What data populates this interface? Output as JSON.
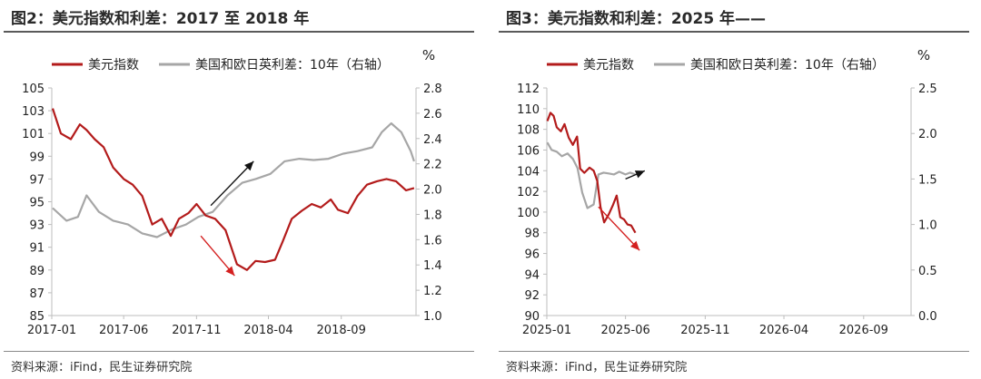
{
  "charts": [
    {
      "panel_title": "图2：美元指数和利差：2017 至 2018 年",
      "source": "资料来源：iFind，民生证券研究院",
      "right_unit": "%",
      "legend": [
        {
          "label": "美元指数",
          "color": "#b31b1b"
        },
        {
          "label": "美国和欧日英利差：10年（右轴）",
          "color": "#a6a6a6"
        }
      ],
      "arrow_colors": {
        "up": "#111111",
        "down": "#d42020"
      }
    },
    {
      "panel_title": "图3：美元指数和利差：2025 年——",
      "source": "资料来源：iFind，民生证券研究院",
      "right_unit": "%",
      "legend": [
        {
          "label": "美元指数",
          "color": "#b31b1b"
        },
        {
          "label": "美国和欧日英利差：10年（右轴）",
          "color": "#a6a6a6"
        }
      ],
      "arrow_colors": {
        "up": "#111111",
        "down": "#d42020"
      }
    }
  ],
  "chart_data": [
    {
      "type": "line",
      "x_tick_labels": [
        "2017-01",
        "2017-06",
        "2017-11",
        "2018-04",
        "2018-09"
      ],
      "x_range": [
        "2017-01-01",
        "2019-02-05"
      ],
      "x_ticks": [
        "2017-01-01",
        "2017-06-01",
        "2017-11-01",
        "2018-04-01",
        "2018-09-01"
      ],
      "y_left": {
        "range": [
          85,
          105
        ],
        "ticks": [
          85,
          87,
          89,
          91,
          93,
          95,
          97,
          99,
          101,
          103,
          105
        ]
      },
      "y_right": {
        "range": [
          1.0,
          2.8
        ],
        "ticks": [
          "1.0",
          "1.2",
          "1.4",
          "1.6",
          "1.8",
          "2.0",
          "2.2",
          "2.4",
          "2.6",
          "2.8"
        ]
      },
      "grid": false,
      "legend_position": "top",
      "series": [
        {
          "name": "美元指数",
          "axis": "left",
          "color": "#b31b1b",
          "x": [
            "2017-01-03",
            "2017-01-20",
            "2017-02-10",
            "2017-03-01",
            "2017-03-15",
            "2017-04-01",
            "2017-04-20",
            "2017-05-10",
            "2017-06-01",
            "2017-06-20",
            "2017-07-10",
            "2017-07-31",
            "2017-08-20",
            "2017-09-08",
            "2017-09-25",
            "2017-10-15",
            "2017-11-01",
            "2017-11-20",
            "2017-12-10",
            "2018-01-01",
            "2018-01-25",
            "2018-02-15",
            "2018-03-05",
            "2018-03-25",
            "2018-04-15",
            "2018-05-01",
            "2018-05-20",
            "2018-06-10",
            "2018-07-01",
            "2018-07-20",
            "2018-08-10",
            "2018-08-25",
            "2018-09-15",
            "2018-10-05",
            "2018-10-25",
            "2018-11-15",
            "2018-12-05",
            "2018-12-25",
            "2019-01-15",
            "2019-02-01"
          ],
          "y": [
            103.2,
            101.0,
            100.5,
            101.8,
            101.3,
            100.5,
            99.8,
            98.0,
            97.0,
            96.5,
            95.5,
            93.0,
            93.5,
            92.0,
            93.5,
            94.0,
            94.8,
            93.8,
            93.5,
            92.5,
            89.5,
            89.0,
            89.8,
            89.7,
            89.9,
            91.5,
            93.5,
            94.2,
            94.8,
            94.5,
            95.2,
            94.3,
            94.0,
            95.5,
            96.5,
            96.8,
            97.0,
            96.8,
            96.0,
            96.2
          ]
        },
        {
          "name": "美国和欧日英利差：10年（右轴）",
          "axis": "right",
          "color": "#a6a6a6",
          "x": [
            "2017-01-03",
            "2017-02-01",
            "2017-02-25",
            "2017-03-15",
            "2017-04-10",
            "2017-05-10",
            "2017-06-10",
            "2017-07-10",
            "2017-08-10",
            "2017-09-10",
            "2017-10-10",
            "2017-11-05",
            "2017-12-05",
            "2018-01-05",
            "2018-02-05",
            "2018-03-05",
            "2018-04-05",
            "2018-05-05",
            "2018-06-05",
            "2018-07-05",
            "2018-08-05",
            "2018-09-05",
            "2018-10-05",
            "2018-11-05",
            "2018-11-25",
            "2018-12-15",
            "2019-01-05",
            "2019-01-25",
            "2019-02-01"
          ],
          "y": [
            1.85,
            1.75,
            1.78,
            1.95,
            1.82,
            1.75,
            1.72,
            1.65,
            1.62,
            1.68,
            1.72,
            1.78,
            1.82,
            1.95,
            2.05,
            2.08,
            2.12,
            2.22,
            2.24,
            2.23,
            2.24,
            2.28,
            2.3,
            2.33,
            2.45,
            2.52,
            2.45,
            2.3,
            2.22
          ]
        }
      ],
      "arrows": [
        {
          "color": "up",
          "from": [
            "2017-12-01",
            1.87
          ],
          "to": [
            "2018-03-01",
            2.22
          ]
        },
        {
          "color": "down",
          "from": [
            "2017-11-10",
            92.0
          ],
          "to": [
            "2018-01-20",
            88.5
          ]
        }
      ]
    },
    {
      "type": "line",
      "x_tick_labels": [
        "2025-01",
        "2025-06",
        "2025-11",
        "2026-04",
        "2026-09"
      ],
      "x_range": [
        "2025-01-01",
        "2026-12-01"
      ],
      "x_ticks": [
        "2025-01-01",
        "2025-06-01",
        "2025-11-01",
        "2026-04-01",
        "2026-09-01"
      ],
      "y_left": {
        "range": [
          90,
          112
        ],
        "ticks": [
          90,
          92,
          94,
          96,
          98,
          100,
          102,
          104,
          106,
          108,
          110,
          112
        ]
      },
      "y_right": {
        "range": [
          0.0,
          2.5
        ],
        "ticks": [
          "0.0",
          "0.5",
          "1.0",
          "1.5",
          "2.0",
          "2.5"
        ]
      },
      "grid": false,
      "legend_position": "top",
      "series": [
        {
          "name": "美元指数",
          "axis": "left",
          "color": "#b31b1b",
          "x": [
            "2025-01-02",
            "2025-01-08",
            "2025-01-14",
            "2025-01-20",
            "2025-01-28",
            "2025-02-04",
            "2025-02-12",
            "2025-02-20",
            "2025-02-28",
            "2025-03-06",
            "2025-03-14",
            "2025-03-24",
            "2025-04-01",
            "2025-04-08",
            "2025-04-14",
            "2025-04-21",
            "2025-04-30",
            "2025-05-08",
            "2025-05-15",
            "2025-05-22",
            "2025-05-29",
            "2025-06-05",
            "2025-06-12",
            "2025-06-20"
          ],
          "y": [
            108.8,
            109.6,
            109.3,
            108.2,
            107.8,
            108.5,
            107.2,
            106.5,
            107.3,
            104.2,
            103.8,
            104.3,
            104.0,
            103.0,
            100.5,
            99.0,
            99.8,
            100.7,
            101.6,
            99.5,
            99.3,
            98.8,
            98.7,
            98.0
          ]
        },
        {
          "name": "美国和欧日英利差：10年（右轴）",
          "axis": "right",
          "color": "#a6a6a6",
          "x": [
            "2025-01-02",
            "2025-01-10",
            "2025-01-20",
            "2025-01-30",
            "2025-02-10",
            "2025-02-20",
            "2025-03-01",
            "2025-03-10",
            "2025-03-20",
            "2025-04-01",
            "2025-04-10",
            "2025-04-20",
            "2025-05-01",
            "2025-05-10",
            "2025-05-20",
            "2025-06-01",
            "2025-06-10",
            "2025-06-20"
          ],
          "y": [
            1.9,
            1.82,
            1.8,
            1.75,
            1.78,
            1.72,
            1.62,
            1.35,
            1.18,
            1.22,
            1.55,
            1.57,
            1.56,
            1.55,
            1.58,
            1.55,
            1.57,
            1.55
          ]
        }
      ],
      "arrows": [
        {
          "color": "up",
          "from": [
            "2025-06-01",
            1.5
          ],
          "to": [
            "2025-07-08",
            1.59
          ]
        },
        {
          "color": "down",
          "from": [
            "2025-04-10",
            100.5
          ],
          "to": [
            "2025-06-28",
            96.3
          ]
        }
      ]
    }
  ]
}
